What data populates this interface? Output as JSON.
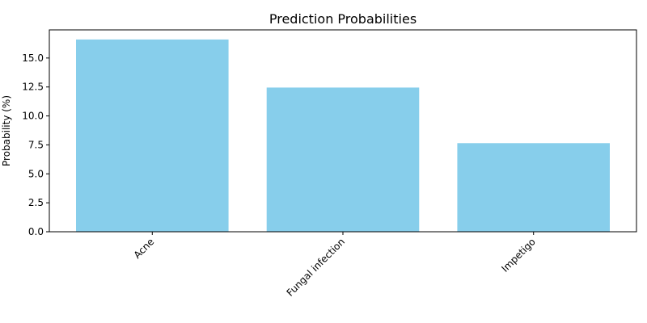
{
  "chart_data": {
    "type": "bar",
    "title": "Prediction Probabilities",
    "xlabel": "",
    "ylabel": "Probability (%)",
    "categories": [
      "Acne",
      "Fungal infection",
      "Impetigo"
    ],
    "values": [
      16.6,
      12.45,
      7.65
    ],
    "ylim": [
      0,
      17.43
    ],
    "yticks": [
      0.0,
      2.5,
      5.0,
      7.5,
      10.0,
      12.5,
      15.0
    ],
    "ytick_labels": [
      "0.0",
      "2.5",
      "5.0",
      "7.5",
      "10.0",
      "12.5",
      "15.0"
    ],
    "bar_color": "#87CEEB",
    "grid": false,
    "legend": "none",
    "xtick_rotation": "45°, right-aligned"
  }
}
